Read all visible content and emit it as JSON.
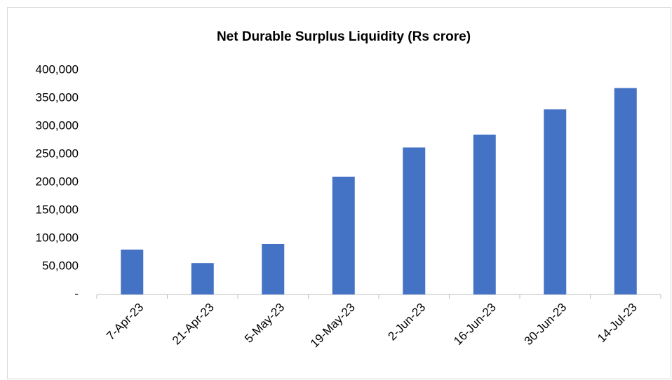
{
  "chart_data": {
    "type": "bar",
    "title": "Net Durable Surplus Liquidity (Rs crore)",
    "categories": [
      "7-Apr-23",
      "21-Apr-23",
      "5-May-23",
      "19-May-23",
      "2-Jun-23",
      "16-Jun-23",
      "30-Jun-23",
      "14-Jul-23"
    ],
    "values": [
      80000,
      56000,
      90000,
      210000,
      262000,
      285000,
      330000,
      368000
    ],
    "color": "#4472c4",
    "ylim": [
      0,
      400000
    ],
    "yticks": [
      {
        "value": 0,
        "label": "-"
      },
      {
        "value": 50000,
        "label": "50,000"
      },
      {
        "value": 100000,
        "label": "100,000"
      },
      {
        "value": 150000,
        "label": "150,000"
      },
      {
        "value": 200000,
        "label": "200,000"
      },
      {
        "value": 250000,
        "label": "250,000"
      },
      {
        "value": 300000,
        "label": "300,000"
      },
      {
        "value": 350000,
        "label": "350,000"
      },
      {
        "value": 400000,
        "label": "400,000"
      }
    ],
    "grid": false
  }
}
